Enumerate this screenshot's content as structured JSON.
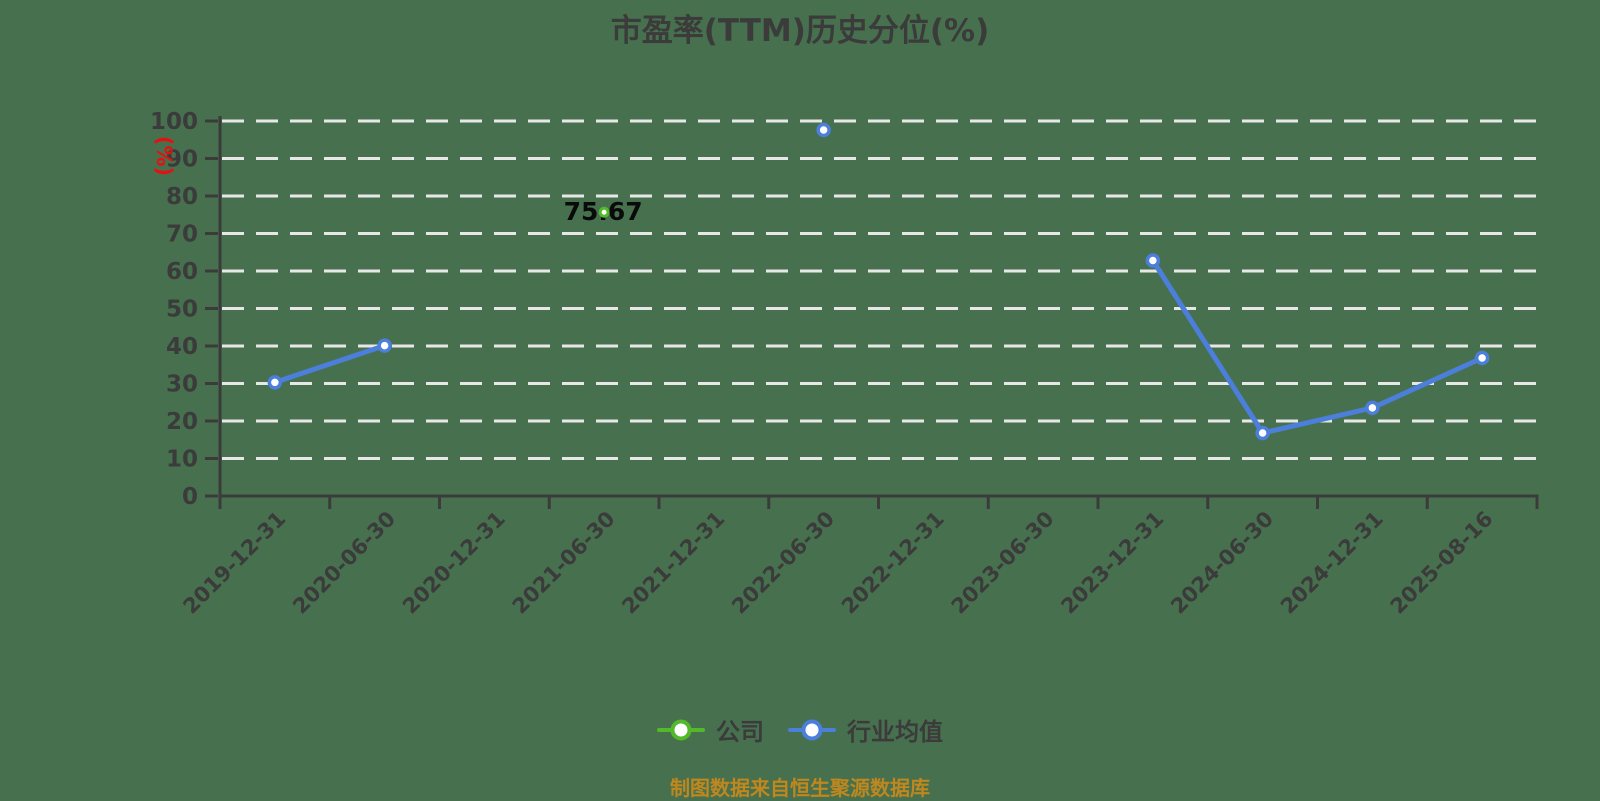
{
  "title": "市盈率(TTM)历史分位(%)",
  "source_note": "制图数据来自恒生聚源数据库",
  "colors": {
    "background": "#47714E",
    "title_text": "#3B3B3B",
    "axis": "#3B3B3B",
    "tick_label": "#3B3B3B",
    "gridline": "#E7E7E7",
    "unit_label": "#E21212",
    "company": "#53B82A",
    "industry": "#4C7EDB",
    "data_label": "#0A0A0A",
    "source_text": "#BF871E",
    "legend_text": "#3B3B3B",
    "point_fill": "#FFFFFF"
  },
  "legend": {
    "items": [
      {
        "label": "公司"
      },
      {
        "label": "行业均值"
      }
    ]
  },
  "chart_data": {
    "type": "line",
    "title": "市盈率(TTM)历史分位(%)",
    "ylabel": "(%)",
    "xlabel": "",
    "ylim": [
      0,
      100
    ],
    "y_ticks": [
      0,
      10,
      20,
      30,
      40,
      50,
      60,
      70,
      80,
      90,
      100
    ],
    "grid": "horizontal-dashed",
    "legend_position": "bottom",
    "x_label_rotate": 45,
    "categories": [
      "2019-12-31",
      "2020-06-30",
      "2020-12-31",
      "2021-06-30",
      "2021-12-31",
      "2022-06-30",
      "2022-12-31",
      "2023-06-30",
      "2023-12-31",
      "2024-06-30",
      "2024-12-31",
      "2025-08-16"
    ],
    "series": [
      {
        "name": "公司",
        "slug": "company",
        "color": "#53B82A",
        "values": [
          null,
          null,
          null,
          75.67,
          null,
          null,
          null,
          null,
          null,
          null,
          null,
          null
        ],
        "point_labels": [
          {
            "index": 3,
            "text": "75.67"
          }
        ]
      },
      {
        "name": "行业均值",
        "slug": "industry",
        "color": "#4C7EDB",
        "values": [
          30.3,
          40.1,
          null,
          null,
          null,
          97.6,
          null,
          null,
          62.8,
          16.8,
          23.5,
          36.8
        ],
        "point_labels": []
      }
    ]
  }
}
